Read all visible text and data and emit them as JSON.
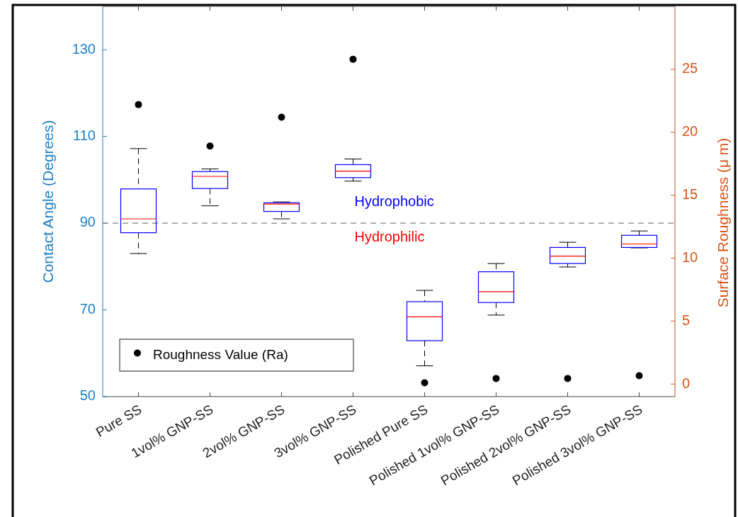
{
  "chart_data": {
    "type": "box",
    "categories": [
      "Pure SS",
      "1vol% GNP-SS",
      "2vol% GNP-SS",
      "3vol% GNP-SS",
      "Polished Pure SS",
      "Polished 1vol% GNP-SS",
      "Polished 2vol% GNP-SS",
      "Polished 3vol% GNP-SS"
    ],
    "ylabel": "Contact Angle (Degrees)",
    "y2label": "Surface Roughness (μ m)",
    "ylim": [
      50,
      140
    ],
    "yticks": [
      50,
      70,
      90,
      110,
      130
    ],
    "y2lim": [
      -1,
      30
    ],
    "y2ticks": [
      0,
      5,
      10,
      15,
      20,
      25
    ],
    "series": [
      {
        "color": "#0000ff",
        "boxes": [
          {
            "low": 83.0,
            "q1": 87.8,
            "median": 91.0,
            "q3": 97.9,
            "high": 107.2
          },
          {
            "low": 94.0,
            "q1": 98.0,
            "median": 100.8,
            "q3": 101.9,
            "high": 102.5
          },
          {
            "low": 91.0,
            "q1": 92.7,
            "median": 94.4,
            "q3": 94.7,
            "high": 94.9
          },
          {
            "low": 99.7,
            "q1": 100.5,
            "median": 102.0,
            "q3": 103.5,
            "high": 104.8
          },
          {
            "low": 57.1,
            "q1": 62.9,
            "median": 68.4,
            "q3": 71.9,
            "high": 74.5
          },
          {
            "low": 68.8,
            "q1": 71.7,
            "median": 74.2,
            "q3": 78.8,
            "high": 80.7
          },
          {
            "low": 79.9,
            "q1": 80.7,
            "median": 82.4,
            "q3": 84.4,
            "high": 85.6
          },
          {
            "low": 84.3,
            "q1": 84.4,
            "median": 85.2,
            "q3": 87.2,
            "high": 88.2
          }
        ]
      },
      {
        "type": "scatter",
        "name": "Roughness Value (Ra)",
        "color": "#000000",
        "axis": "y2",
        "marker": "circle",
        "x": [
          "Pure SS",
          "1vol% GNP-SS",
          "2vol% GNP-SS",
          "3vol% GNP-SS",
          "Polished Pure SS",
          "Polished 1vol% GNP-SS",
          "Polished 2vol% GNP-SS",
          "Polished 3vol% GNP-SS"
        ],
        "values": [
          22.2,
          18.9,
          21.2,
          25.8,
          0.1,
          0.44,
          0.44,
          0.66
        ]
      }
    ],
    "ref_lines": [
      {
        "axis": "y",
        "value": 90,
        "color": "#808080",
        "line_style": "dashed"
      }
    ],
    "annotations": [
      "Hydrophobic",
      "Hydrophilic"
    ],
    "legend": "bottom left"
  }
}
